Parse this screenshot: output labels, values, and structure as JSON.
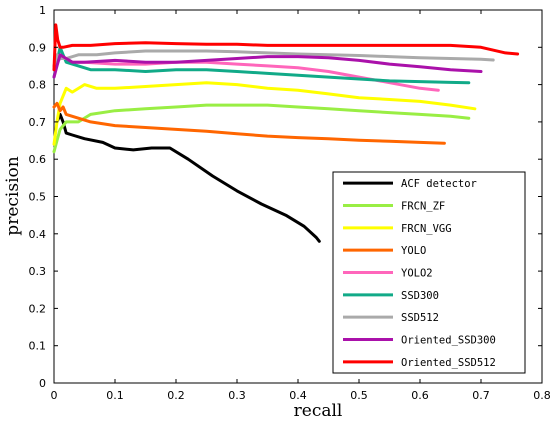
{
  "chart_data": {
    "type": "line",
    "title": "",
    "xlabel": "recall",
    "ylabel": "precision",
    "xlim": [
      0,
      0.8
    ],
    "ylim": [
      0,
      1
    ],
    "xticks": [
      "0",
      "0.1",
      "0.2",
      "0.3",
      "0.4",
      "0.5",
      "0.6",
      "0.7",
      "0.8"
    ],
    "yticks": [
      "0",
      "0.1",
      "0.2",
      "0.3",
      "0.4",
      "0.5",
      "0.6",
      "0.7",
      "0.8",
      "0.9",
      "1"
    ],
    "grid": false,
    "legend_position": "bottom-right",
    "series": [
      {
        "name": "ACF detector",
        "color": "#000000",
        "x": [
          0.005,
          0.01,
          0.015,
          0.02,
          0.03,
          0.05,
          0.08,
          0.1,
          0.13,
          0.16,
          0.19,
          0.22,
          0.26,
          0.3,
          0.34,
          0.38,
          0.41,
          0.43,
          0.435
        ],
        "y": [
          0.7,
          0.72,
          0.7,
          0.67,
          0.665,
          0.655,
          0.645,
          0.63,
          0.625,
          0.63,
          0.63,
          0.6,
          0.555,
          0.515,
          0.48,
          0.45,
          0.42,
          0.39,
          0.38
        ]
      },
      {
        "name": "FRCN_ZF",
        "color": "#99ee44",
        "x": [
          0.0,
          0.005,
          0.01,
          0.02,
          0.04,
          0.06,
          0.1,
          0.15,
          0.2,
          0.25,
          0.3,
          0.35,
          0.4,
          0.45,
          0.5,
          0.55,
          0.6,
          0.65,
          0.68
        ],
        "y": [
          0.62,
          0.65,
          0.68,
          0.7,
          0.7,
          0.72,
          0.73,
          0.735,
          0.74,
          0.745,
          0.745,
          0.745,
          0.74,
          0.735,
          0.73,
          0.725,
          0.72,
          0.715,
          0.71
        ]
      },
      {
        "name": "FRCN_VGG",
        "color": "#ffff00",
        "x": [
          0.0,
          0.005,
          0.01,
          0.02,
          0.03,
          0.05,
          0.07,
          0.1,
          0.15,
          0.2,
          0.25,
          0.3,
          0.35,
          0.4,
          0.45,
          0.5,
          0.55,
          0.6,
          0.65,
          0.69
        ],
        "y": [
          0.64,
          0.7,
          0.75,
          0.79,
          0.78,
          0.8,
          0.79,
          0.79,
          0.795,
          0.8,
          0.805,
          0.8,
          0.79,
          0.785,
          0.775,
          0.765,
          0.76,
          0.755,
          0.745,
          0.735
        ]
      },
      {
        "name": "YOLO",
        "color": "#ff6600",
        "x": [
          0.0,
          0.005,
          0.01,
          0.015,
          0.02,
          0.04,
          0.06,
          0.1,
          0.15,
          0.2,
          0.25,
          0.3,
          0.35,
          0.4,
          0.45,
          0.5,
          0.55,
          0.6,
          0.64
        ],
        "y": [
          0.74,
          0.75,
          0.73,
          0.74,
          0.72,
          0.71,
          0.7,
          0.69,
          0.685,
          0.68,
          0.675,
          0.668,
          0.662,
          0.658,
          0.655,
          0.651,
          0.648,
          0.645,
          0.643
        ]
      },
      {
        "name": "YOLO2",
        "color": "#ff66bb",
        "x": [
          0.0,
          0.005,
          0.01,
          0.02,
          0.03,
          0.05,
          0.1,
          0.15,
          0.2,
          0.25,
          0.3,
          0.35,
          0.4,
          0.45,
          0.5,
          0.55,
          0.6,
          0.63
        ],
        "y": [
          0.84,
          0.86,
          0.87,
          0.87,
          0.86,
          0.86,
          0.855,
          0.855,
          0.86,
          0.86,
          0.855,
          0.85,
          0.845,
          0.835,
          0.82,
          0.805,
          0.79,
          0.785
        ]
      },
      {
        "name": "SSD300",
        "color": "#11aa88",
        "x": [
          0.0,
          0.005,
          0.01,
          0.015,
          0.02,
          0.04,
          0.06,
          0.1,
          0.15,
          0.2,
          0.25,
          0.3,
          0.35,
          0.4,
          0.45,
          0.5,
          0.55,
          0.6,
          0.65,
          0.68
        ],
        "y": [
          0.82,
          0.86,
          0.9,
          0.88,
          0.86,
          0.85,
          0.84,
          0.84,
          0.835,
          0.84,
          0.84,
          0.835,
          0.83,
          0.825,
          0.82,
          0.815,
          0.81,
          0.808,
          0.806,
          0.805
        ]
      },
      {
        "name": "SSD512",
        "color": "#aaaaaa",
        "x": [
          0.0,
          0.005,
          0.01,
          0.02,
          0.04,
          0.07,
          0.1,
          0.15,
          0.2,
          0.25,
          0.3,
          0.35,
          0.4,
          0.45,
          0.5,
          0.55,
          0.6,
          0.65,
          0.7,
          0.72
        ],
        "y": [
          0.85,
          0.88,
          0.87,
          0.87,
          0.88,
          0.88,
          0.885,
          0.89,
          0.89,
          0.89,
          0.888,
          0.885,
          0.882,
          0.88,
          0.878,
          0.875,
          0.872,
          0.87,
          0.868,
          0.866
        ]
      },
      {
        "name": "Oriented_SSD300",
        "color": "#aa11aa",
        "x": [
          0.0,
          0.005,
          0.01,
          0.02,
          0.03,
          0.05,
          0.1,
          0.15,
          0.2,
          0.25,
          0.3,
          0.35,
          0.4,
          0.45,
          0.5,
          0.55,
          0.6,
          0.65,
          0.7
        ],
        "y": [
          0.82,
          0.85,
          0.88,
          0.87,
          0.86,
          0.86,
          0.865,
          0.86,
          0.86,
          0.865,
          0.87,
          0.875,
          0.875,
          0.872,
          0.865,
          0.855,
          0.848,
          0.84,
          0.835
        ]
      },
      {
        "name": "Oriented_SSD512",
        "color": "#ff0000",
        "x": [
          0.0,
          0.003,
          0.006,
          0.01,
          0.015,
          0.03,
          0.06,
          0.1,
          0.15,
          0.2,
          0.25,
          0.3,
          0.35,
          0.4,
          0.45,
          0.5,
          0.55,
          0.6,
          0.65,
          0.7,
          0.74,
          0.76
        ],
        "y": [
          0.84,
          0.96,
          0.92,
          0.9,
          0.9,
          0.905,
          0.905,
          0.91,
          0.912,
          0.91,
          0.908,
          0.908,
          0.905,
          0.905,
          0.905,
          0.905,
          0.905,
          0.905,
          0.905,
          0.9,
          0.885,
          0.882
        ]
      }
    ]
  }
}
